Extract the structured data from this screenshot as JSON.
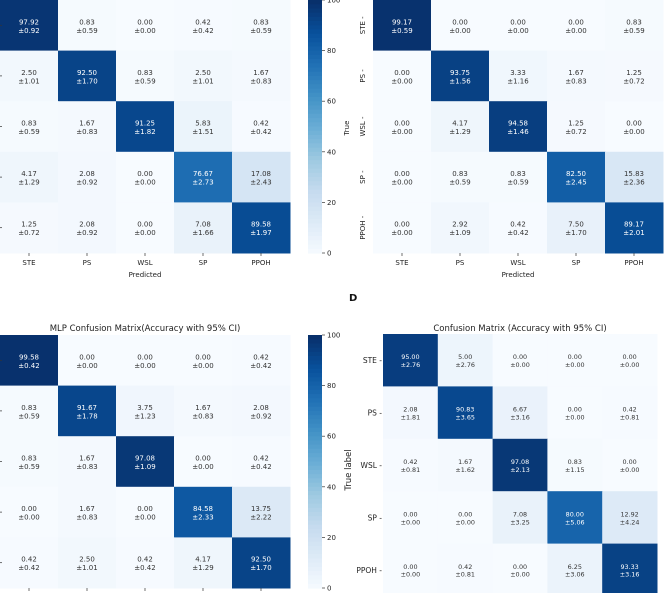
{
  "panel_letters": [
    "D"
  ],
  "chart_data": [
    {
      "type": "heatmap",
      "title": "",
      "xlabel": "Predicted",
      "ylabel": "",
      "x_categories": [
        "STE",
        "PS",
        "WSL",
        "SP",
        "PPOH"
      ],
      "y_categories": [],
      "values": [
        [
          97.92,
          0.83,
          0.0,
          0.42,
          0.83
        ],
        [
          2.5,
          92.5,
          0.83,
          2.5,
          1.67
        ],
        [
          0.83,
          1.67,
          91.25,
          5.83,
          0.42
        ],
        [
          4.17,
          2.08,
          0.0,
          76.67,
          17.08
        ],
        [
          1.25,
          2.08,
          0.0,
          7.08,
          89.58
        ]
      ],
      "errors": [
        [
          0.92,
          0.59,
          0.0,
          0.42,
          0.59
        ],
        [
          1.01,
          1.7,
          0.59,
          1.01,
          0.83
        ],
        [
          0.59,
          0.83,
          1.82,
          1.51,
          0.42
        ],
        [
          1.29,
          0.92,
          0.0,
          2.73,
          2.43
        ],
        [
          0.72,
          0.92,
          0.0,
          1.66,
          1.97
        ]
      ],
      "colormap": "Blues",
      "colorbar": {
        "range": [
          0,
          100
        ],
        "ticks": [
          "0",
          "20",
          "40",
          "60",
          "80",
          "100"
        ]
      }
    },
    {
      "type": "heatmap",
      "title": "",
      "xlabel": "Predicted",
      "ylabel": "True",
      "x_categories": [
        "STE",
        "PS",
        "WSL",
        "SP",
        "PPOH"
      ],
      "y_categories": [
        "STE",
        "PS",
        "WSL",
        "SP",
        "PPOH"
      ],
      "values": [
        [
          99.17,
          0.0,
          0.0,
          0.0,
          0.83
        ],
        [
          0.0,
          93.75,
          3.33,
          1.67,
          1.25
        ],
        [
          0.0,
          4.17,
          94.58,
          1.25,
          0.0
        ],
        [
          0.0,
          0.83,
          0.83,
          82.5,
          15.83
        ],
        [
          0.0,
          2.92,
          0.42,
          7.5,
          89.17
        ]
      ],
      "errors": [
        [
          0.59,
          0.0,
          0.0,
          0.0,
          0.59
        ],
        [
          0.0,
          1.56,
          1.16,
          0.83,
          0.72
        ],
        [
          0.0,
          1.29,
          1.46,
          0.72,
          0.0
        ],
        [
          0.0,
          0.59,
          0.59,
          2.45,
          2.36
        ],
        [
          0.0,
          1.09,
          0.42,
          1.7,
          2.01
        ]
      ],
      "colormap": "Blues"
    },
    {
      "type": "heatmap",
      "title": "MLP Confusion Matrix(Accuracy with 95% CI)",
      "xlabel": "",
      "ylabel": "",
      "x_categories": [],
      "y_categories": [],
      "values": [
        [
          99.58,
          0.0,
          0.0,
          0.0,
          0.42
        ],
        [
          0.83,
          91.67,
          3.75,
          1.67,
          2.08
        ],
        [
          0.83,
          1.67,
          97.08,
          0.0,
          0.42
        ],
        [
          0.0,
          1.67,
          0.0,
          84.58,
          13.75
        ],
        [
          0.42,
          2.5,
          0.42,
          4.17,
          92.5
        ]
      ],
      "errors": [
        [
          0.42,
          0.0,
          0.0,
          0.0,
          0.42
        ],
        [
          0.59,
          1.78,
          1.23,
          0.83,
          0.92
        ],
        [
          0.59,
          0.83,
          1.09,
          0.0,
          0.42
        ],
        [
          0.0,
          0.83,
          0.0,
          2.33,
          2.22
        ],
        [
          0.42,
          1.01,
          0.42,
          1.29,
          1.7
        ]
      ],
      "colormap": "Blues",
      "colorbar": {
        "range": [
          0,
          100
        ],
        "ticks": [
          "0",
          "20",
          "40",
          "60",
          "80",
          "100"
        ]
      }
    },
    {
      "type": "heatmap",
      "title": "Confusion Matrix (Accuracy with 95% CI)",
      "xlabel": "",
      "ylabel": "True label",
      "x_categories": [],
      "y_categories": [
        "STE",
        "PS",
        "WSL",
        "SP",
        "PPOH"
      ],
      "values": [
        [
          95.0,
          5.0,
          0.0,
          0.0,
          0.0
        ],
        [
          2.08,
          90.83,
          6.67,
          0.0,
          0.42
        ],
        [
          0.42,
          1.67,
          97.08,
          0.83,
          0.0
        ],
        [
          0.0,
          0.0,
          7.08,
          80.0,
          12.92
        ],
        [
          0.0,
          0.42,
          0.0,
          6.25,
          93.33
        ]
      ],
      "errors": [
        [
          2.76,
          2.76,
          0.0,
          0.0,
          0.0
        ],
        [
          1.81,
          3.65,
          3.16,
          0.0,
          0.81
        ],
        [
          0.81,
          1.62,
          2.13,
          1.15,
          0.0
        ],
        [
          0.0,
          0.0,
          3.25,
          5.06,
          4.24
        ],
        [
          0.0,
          0.81,
          0.0,
          3.06,
          3.16
        ]
      ],
      "colormap": "Blues"
    }
  ]
}
